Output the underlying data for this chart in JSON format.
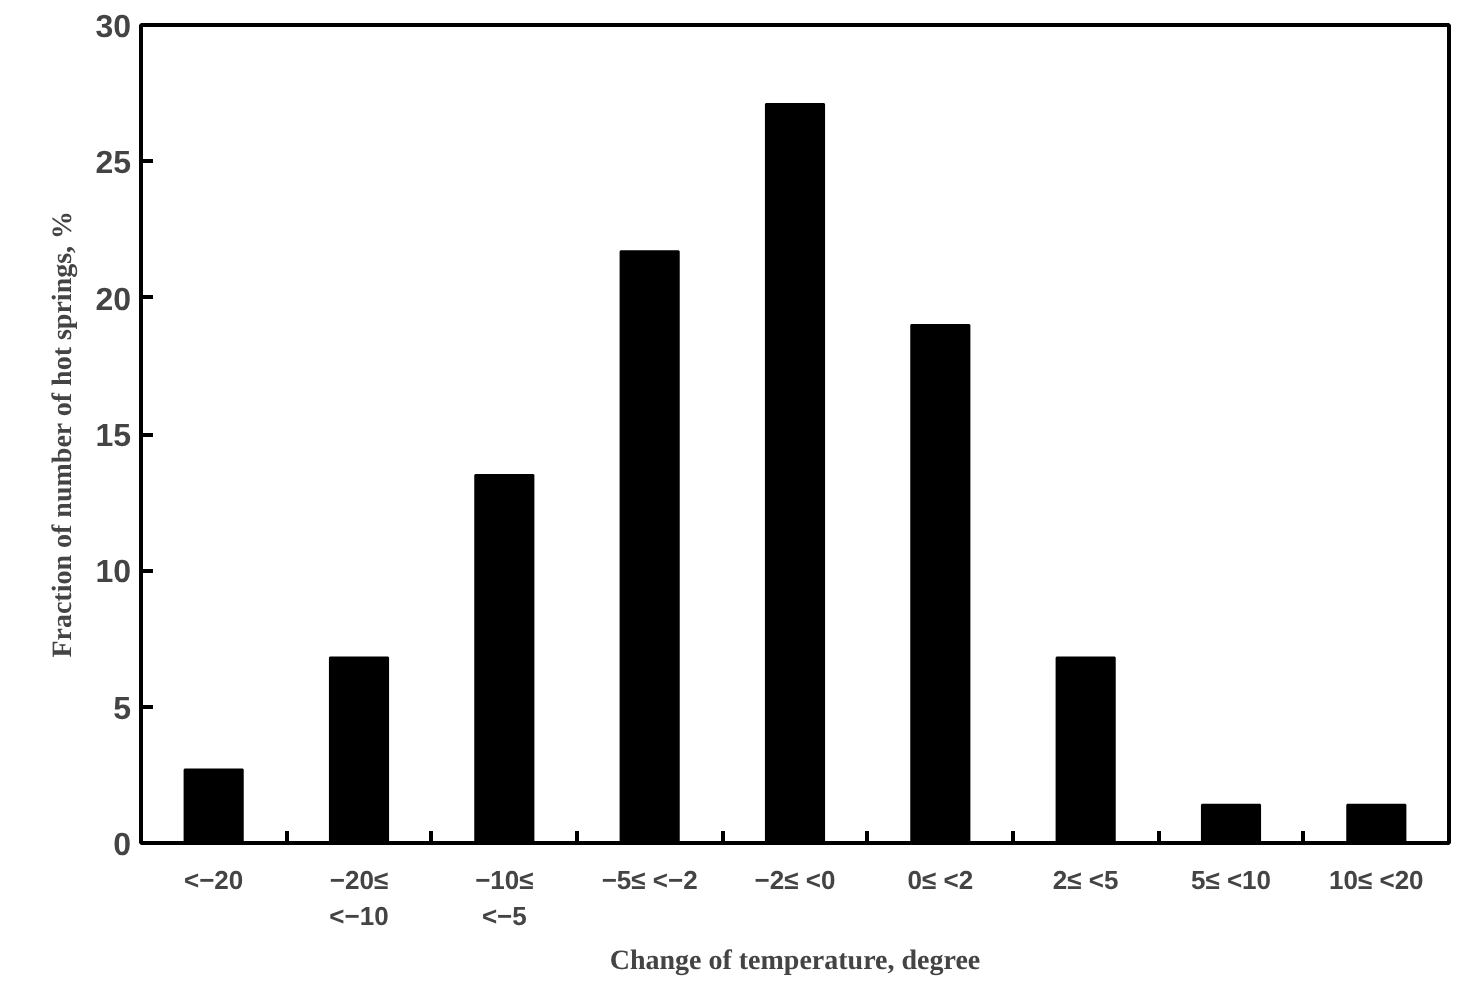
{
  "chart_data": {
    "type": "bar",
    "xlabel": "Change of temperature, degree",
    "ylabel": "Fraction of number of hot springs, %",
    "categories": [
      "<−20",
      "−20≤\n<−10",
      "−10≤\n<−5",
      "−5≤ <−2",
      "−2≤ <0",
      "0≤ <2",
      "2≤ <5",
      "5≤ <10",
      "10≤ <20"
    ],
    "values": [
      2.7,
      6.8,
      13.5,
      21.7,
      27.1,
      19.0,
      6.8,
      1.4,
      1.4
    ],
    "color": "#000000",
    "ylim": [
      0,
      30
    ],
    "yticks": [
      0,
      5,
      10,
      15,
      20,
      25,
      30
    ],
    "grid": false
  }
}
